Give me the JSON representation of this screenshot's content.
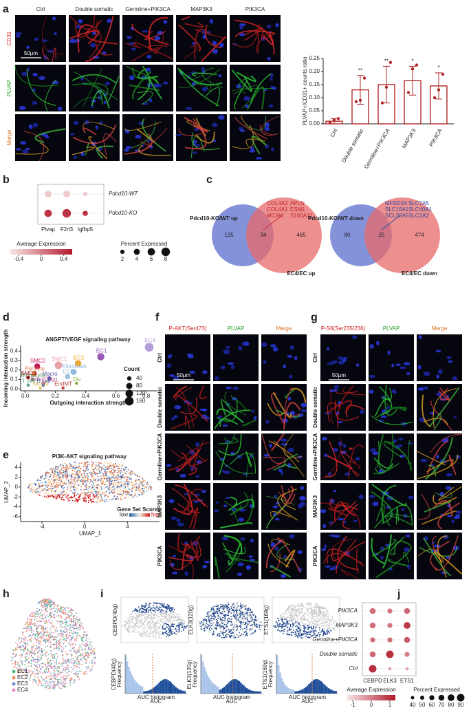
{
  "letters": [
    "a",
    "b",
    "c",
    "d",
    "e",
    "f",
    "g",
    "h",
    "i",
    "j"
  ],
  "a": {
    "columns": [
      "Ctrl",
      "Double somatic",
      "Germline+PIK3CA",
      "MAP3K3",
      "PIK3CA"
    ],
    "rows": [
      "CD31",
      "PLVAP",
      "Merge"
    ],
    "scale_bar": "50μm",
    "chart": {
      "type": "bar",
      "ylabel": "PLVAP+/CD31+ counts ratio",
      "categories": [
        "Ctrl",
        "Double somatic",
        "Germline+PIK3CA",
        "MAP3K3",
        "PIK3CA"
      ],
      "values": [
        0.01,
        0.13,
        0.15,
        0.165,
        0.145
      ],
      "errors": [
        0.01,
        0.055,
        0.07,
        0.055,
        0.05
      ],
      "points": [
        [
          0.005,
          0.015,
          0.02
        ],
        [
          0.085,
          0.09,
          0.175
        ],
        [
          0.08,
          0.14,
          0.235
        ],
        [
          0.12,
          0.21,
          0.225
        ],
        [
          0.1,
          0.13,
          0.19
        ]
      ],
      "significance": [
        null,
        "**",
        "**",
        "*",
        "*"
      ],
      "color": "#b22828",
      "ylim": [
        0,
        0.25
      ],
      "yticks": [
        {
          "value": 0,
          "label": "0.00"
        },
        0.05,
        {
          "value": 0.1,
          "label": "0.10"
        },
        0.15,
        {
          "value": 0.2,
          "label": "0.20"
        },
        0.25
      ]
    }
  },
  "b": {
    "chart": {
      "type": "dot",
      "rows": [
        "Pdcd10-WT",
        "Pdcd10-KO"
      ],
      "categories": [
        "Plvap",
        "F2rl3",
        "Igfbp5"
      ],
      "expression": [
        [
          -0.4,
          -0.4,
          -0.4
        ],
        [
          0.4,
          0.4,
          0.4
        ]
      ],
      "percent": [
        [
          5,
          5,
          2
        ],
        [
          6,
          8,
          3
        ]
      ],
      "color_title": "Average Expression",
      "color_lim": [
        -0.55,
        0.55
      ],
      "color_ticks": [
        -0.4,
        0,
        0.4
      ],
      "size_title": "Percent Expressed",
      "size_ticks": [
        2,
        4,
        6,
        8
      ]
    }
  },
  "c": {
    "venns": [
      {
        "title": "Pdcd10-KO/WT up",
        "counts": [
          135,
          34,
          465
        ],
        "set_label": "EC4/EC up",
        "genes": [
          "COL4A2",
          "APLN",
          "COL4A1",
          "ESM1",
          "MCAM",
          "S100A11"
        ],
        "gene_color": "#c0282d"
      },
      {
        "title": "Pdcd10-KO/WT down",
        "counts": [
          80,
          25,
          474
        ],
        "set_label": "EC4/EC down",
        "genes": [
          "MFSD2A",
          "SLC7A5",
          "SLC16A1",
          "SLC40A1",
          "SCL38A5",
          "SLC3A2"
        ],
        "gene_color": "#2b4aa0"
      }
    ]
  },
  "d": {
    "chart": {
      "type": "scatter",
      "title": "ANGPT/VEGF signaling pathway",
      "xlabel": "Outgoing interaction strength",
      "ylabel": "Incoming interaction strength",
      "labels": [
        "EC4",
        "EC1",
        "EC2",
        "SMC1",
        "SMC2",
        "Pericyte",
        "Fibroblast",
        "EC3",
        "Macro",
        "Monocyte",
        "SMC3",
        "Astro/Oligo",
        "Div",
        "T cell",
        "B cell",
        "NKcell",
        "EndMT"
      ],
      "x": [
        0.82,
        0.5,
        0.35,
        0.22,
        0.08,
        0.06,
        0.32,
        0.28,
        0.16,
        0.05,
        0.02,
        0.12,
        0.34,
        0.02,
        0.12,
        0.1,
        0.25
      ],
      "y": [
        0.44,
        0.34,
        0.27,
        0.25,
        0.24,
        0.16,
        0.18,
        0.13,
        0.11,
        0.1,
        0.12,
        0.06,
        0.06,
        0.04,
        0.04,
        0.01,
        0.01
      ],
      "count": [
        160,
        110,
        90,
        120,
        70,
        60,
        80,
        60,
        40,
        30,
        30,
        30,
        20,
        20,
        20,
        20,
        20
      ],
      "colors": [
        "#b39ddb",
        "#9b59b6",
        "#f0a830",
        "#e8a0a8",
        "#c2185b",
        "#e07040",
        "#90b8e0",
        "#a0c0e0",
        "#5050a0",
        "#5a8a5a",
        "#8b1a1a",
        "#c060a0",
        "#80b040",
        "#60a080",
        "#4060a0",
        "#d8c060",
        "#c04040"
      ],
      "xlim": [
        -0.03,
        0.87
      ],
      "ylim": [
        -0.02,
        0.46
      ],
      "xticks": [
        {
          "value": 0,
          "label": "0.0"
        },
        0.2,
        0.4,
        0.6,
        0.8
      ],
      "yticks": [
        {
          "value": 0,
          "label": "0.0"
        },
        0.1,
        0.2,
        0.3,
        0.4
      ],
      "legend_title": "Count",
      "legend_sizes": [
        40,
        80,
        120,
        160
      ]
    }
  },
  "e": {
    "title": "PI3K-AKT signaling pathway",
    "xlabel": "UMAP_1",
    "ylabel": "UMAP_2",
    "xlim": [
      -6,
      7
    ],
    "ylim": [
      -7,
      5
    ],
    "xticks": [
      -4,
      0,
      4
    ],
    "yticks": [
      4,
      2,
      0,
      -2,
      -4,
      -6
    ],
    "legend_title": "Gene Set Scores",
    "low": "low",
    "high": "high"
  },
  "f": {
    "columns": [
      "P-AKT(Ser473)",
      "PLVAP",
      "Merge"
    ],
    "rows": [
      "Ctrl",
      "Double somatic",
      "Germline+PIK3CA",
      "MAP3K3",
      "PIK3CA"
    ],
    "scale_bar": "50μm"
  },
  "g": {
    "columns": [
      "P-S6(Ser235/236)",
      "PLVAP",
      "Merge"
    ],
    "rows": [
      "Ctrl",
      "Double somatic",
      "Germline+PIK3CA",
      "MAP3K3",
      "PIK3CA"
    ],
    "scale_bar": "50μm"
  },
  "h": {
    "legend": [
      "EC1",
      "EC2",
      "EC3",
      "EC4"
    ],
    "colors": [
      "#58b98f",
      "#f08a5d",
      "#6f8fd0",
      "#e58bc0"
    ]
  },
  "i": {
    "regulons": [
      "CEBPD(40g)",
      "ELK3(120g)",
      "ETS1(169g)"
    ],
    "frequency": "Frequency",
    "histogram": "AUC histogram",
    "auc": "AUC"
  },
  "j": {
    "chart": {
      "type": "dot",
      "rows": [
        "PIK3CA",
        "MAP3K3",
        "Germline+PIK3CA",
        "Double somatic",
        "Ctrl"
      ],
      "categories": [
        "CEBPD",
        "ELK3",
        "ETS1"
      ],
      "expression": [
        [
          0.2,
          0.1,
          0.3
        ],
        [
          0.2,
          0.1,
          0.9
        ],
        [
          0.2,
          0.2,
          0.5
        ],
        [
          0.3,
          1,
          0
        ],
        [
          1,
          -0.5,
          -0.5
        ]
      ],
      "percent": [
        [
          70,
          60,
          70
        ],
        [
          70,
          60,
          80
        ],
        [
          60,
          60,
          70
        ],
        [
          70,
          90,
          60
        ],
        [
          90,
          40,
          40
        ]
      ],
      "color_title": "Average Expression",
      "color_lim": [
        -1.3,
        1.3
      ],
      "color_ticks": [
        -1,
        0,
        1
      ],
      "size_title": "Percent Expressed",
      "size_ticks": [
        40,
        50,
        60,
        70,
        80,
        90
      ]
    }
  }
}
